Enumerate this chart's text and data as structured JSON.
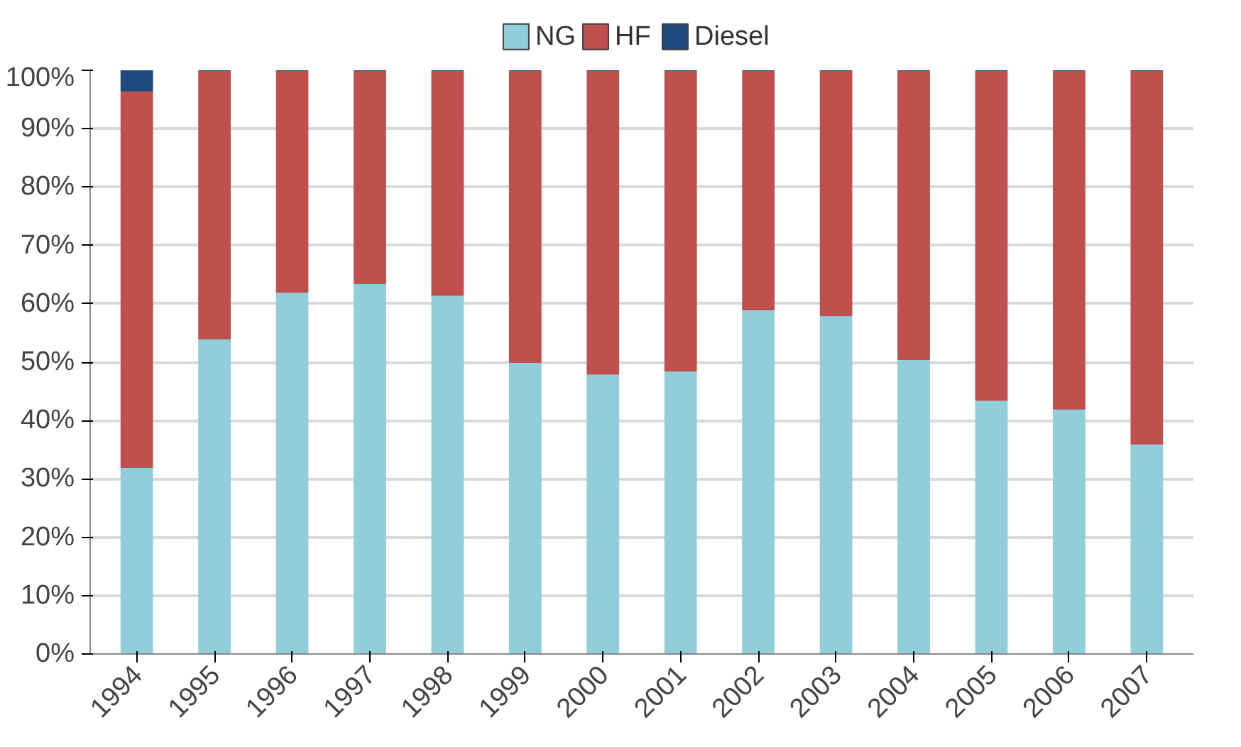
{
  "chart_data": {
    "type": "bar",
    "stacked": true,
    "categories": [
      "1994",
      "1995",
      "1996",
      "1997",
      "1998",
      "1999",
      "2000",
      "2001",
      "2002",
      "2003",
      "2004",
      "2005",
      "2006",
      "2007"
    ],
    "series": [
      {
        "name": "NG",
        "color": "#92cddc",
        "values": [
          32,
          54,
          62,
          63.5,
          61.5,
          50,
          48,
          48.5,
          59,
          58,
          50.5,
          43.5,
          42,
          36
        ]
      },
      {
        "name": "HF",
        "color": "#c0504d",
        "values": [
          64.5,
          46,
          38,
          36.5,
          38.5,
          50,
          52,
          51.5,
          41,
          42,
          49.5,
          56.5,
          58,
          64
        ]
      },
      {
        "name": "Diesel",
        "color": "#1f497d",
        "values": [
          3.5,
          0,
          0,
          0,
          0,
          0,
          0,
          0,
          0,
          0,
          0,
          0,
          0,
          0
        ]
      }
    ],
    "ylim": [
      0,
      100
    ],
    "yticks": [
      {
        "value": 0,
        "label": "0%"
      },
      {
        "value": 10,
        "label": "10%"
      },
      {
        "value": 20,
        "label": "20%"
      },
      {
        "value": 30,
        "label": "30%"
      },
      {
        "value": 40,
        "label": "40%"
      },
      {
        "value": 50,
        "label": "50%"
      },
      {
        "value": 60,
        "label": "60%"
      },
      {
        "value": 70,
        "label": "70%"
      },
      {
        "value": 80,
        "label": "80%"
      },
      {
        "value": 90,
        "label": "90%"
      },
      {
        "value": 100,
        "label": "100%"
      }
    ],
    "grid": "y",
    "legend": "top"
  }
}
